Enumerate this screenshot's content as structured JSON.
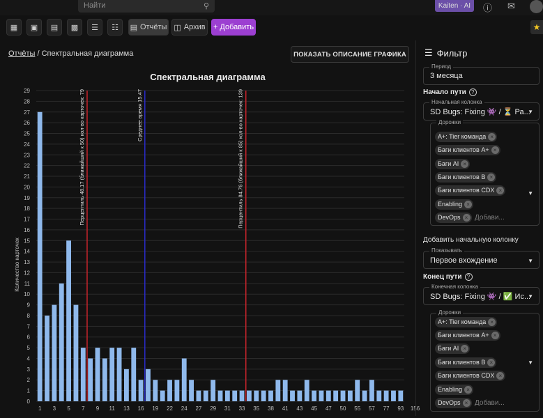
{
  "topbar": {
    "search_placeholder": "Найти",
    "search_icon": "magnifier-icon",
    "kaiten_label": "Kaiten · AI",
    "help_icon": "help-circle-icon",
    "mail_icon": "mail-icon"
  },
  "toolbar": {
    "reports_label": "Отчёты",
    "archive_label": "Архив",
    "add_label": "+ Добавить"
  },
  "breadcrumb": {
    "root": "Отчёты",
    "separator": " / ",
    "current": "Спектральная диаграмма"
  },
  "describe_button": "ПОКАЗАТЬ ОПИСАНИЕ ГРАФИКА",
  "filter": {
    "title": "Фильтр",
    "period_label": "Период",
    "period_value": "3 месяца",
    "path_start_label": "Начало пути",
    "start_column_label": "Начальная колонка",
    "start_column_value": "SD Bugs: Fixing 👾 / ⏳ Ра...",
    "lanes_label": "Дорожки",
    "start_lanes": [
      "A+: Tier команда",
      "Баги клиентов A+",
      "Баги AI",
      "Баги клиентов B",
      "Баги клиентов CDX",
      "Enabling",
      "DevOps"
    ],
    "add_placeholder": "Добави...",
    "add_placeholder_start": "Добави...",
    "add_start_column": "Добавить начальную колонку",
    "show_label": "Показывать",
    "show_value": "Первое вхождение",
    "path_end_label": "Конец пути",
    "end_column_label": "Конечная колонка",
    "end_column_value": "SD Bugs: Fixing 👾 / ✅ Ис...",
    "end_lanes": [
      "A+: Tier команда",
      "Баги клиентов A+",
      "Баги AI",
      "Баги клиентов B",
      "Баги клиентов CDX",
      "Enabling",
      "DevOps"
    ]
  },
  "chart_data": {
    "type": "bar",
    "title": "Спектральная диаграмма",
    "ylabel": "Количество карточек",
    "xlabel": "",
    "ylim": [
      0,
      29
    ],
    "y_ticks": [
      0,
      1,
      2,
      3,
      4,
      5,
      6,
      7,
      8,
      9,
      10,
      11,
      12,
      13,
      14,
      15,
      16,
      17,
      18,
      19,
      20,
      21,
      22,
      23,
      24,
      25,
      26,
      27,
      28,
      29
    ],
    "x_tick_labels": [
      "1",
      "3",
      "5",
      "7",
      "9",
      "11",
      "13",
      "16",
      "19",
      "22",
      "24",
      "27",
      "29",
      "31",
      "33",
      "35",
      "38",
      "41",
      "43",
      "45",
      "47",
      "50",
      "55",
      "57",
      "77",
      "93",
      "156"
    ],
    "values": [
      27,
      8,
      9,
      11,
      15,
      9,
      5,
      4,
      5,
      4,
      5,
      5,
      3,
      5,
      2,
      3,
      2,
      1,
      2,
      2,
      4,
      2,
      1,
      1,
      2,
      1,
      1,
      1,
      1,
      1,
      1,
      1,
      1,
      2,
      2,
      1,
      1,
      2,
      1,
      1,
      1,
      1,
      1,
      1,
      2,
      1,
      2,
      1,
      1,
      1,
      1
    ],
    "bar_color": "#8fb9ec",
    "grid": true,
    "reference_lines": [
      {
        "at_bar_index": 6,
        "color": "#c8242b",
        "label": "Перцентиль 48.17 (ближайший к 50) кол-во карточек: 79"
      },
      {
        "at_bar_index": 14,
        "color": "#2a2bc9",
        "label": "Среднее время 15.47"
      },
      {
        "at_bar_index": 28,
        "color": "#c8242b",
        "label": "Перцентиль 84.76 (ближайший к 85) кол-во карточек: 139"
      }
    ]
  }
}
